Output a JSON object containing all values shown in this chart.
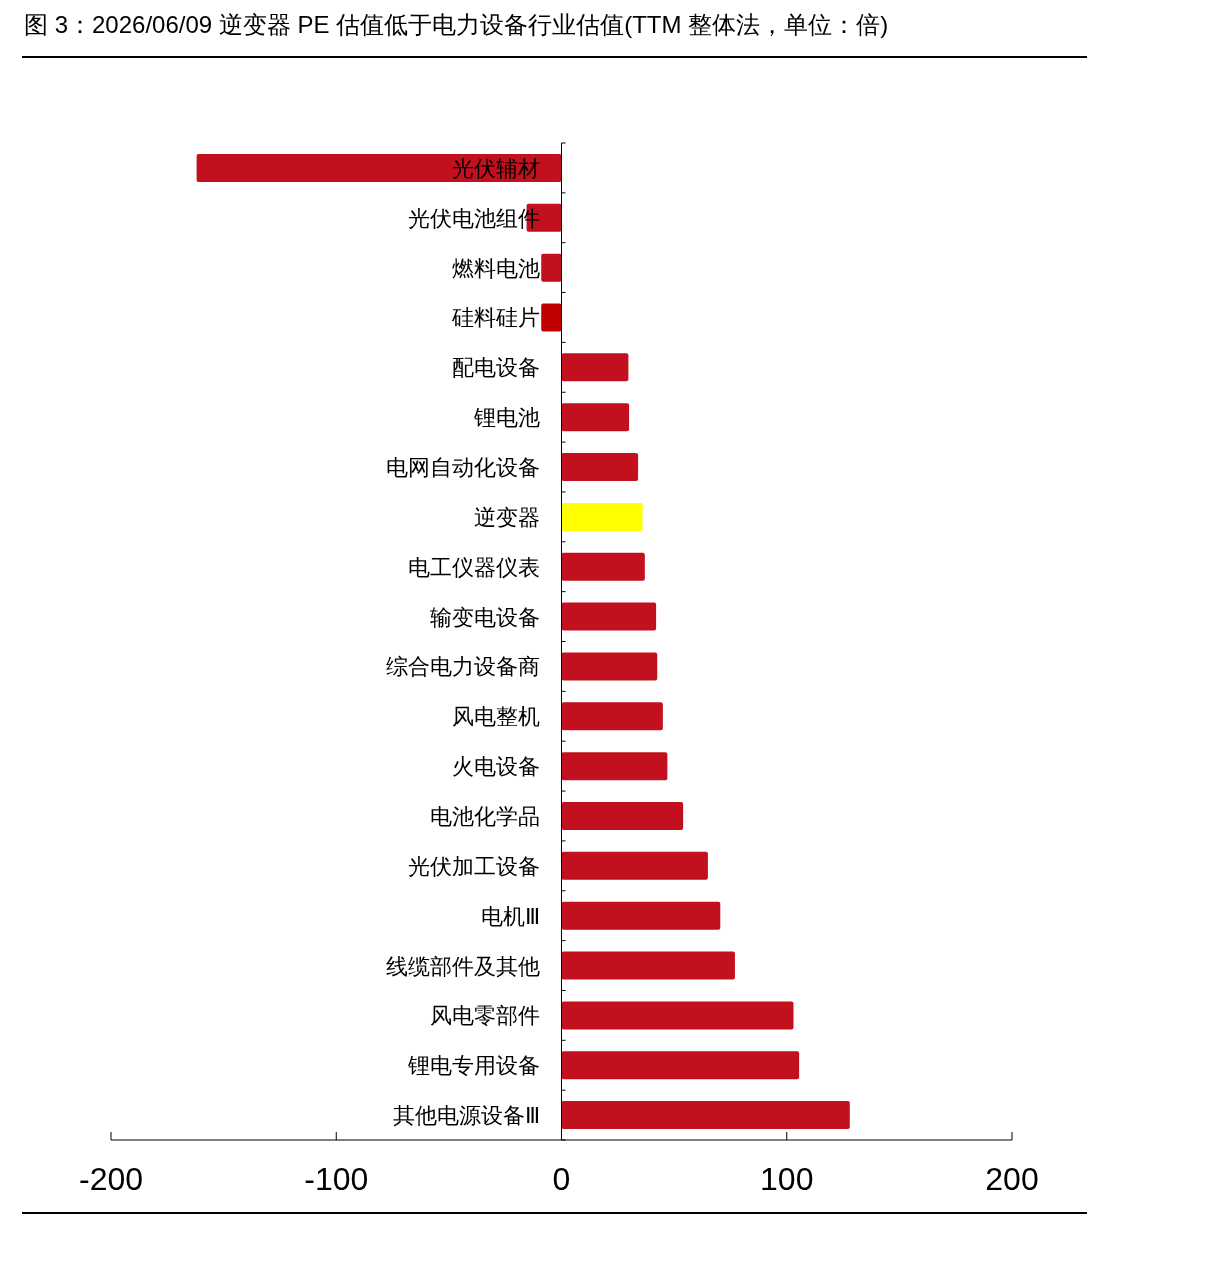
{
  "chart_data": {
    "type": "bar",
    "orientation": "horizontal",
    "title": "图 3：2026/06/09 逆变器 PE 估值低于电力设备行业估值(TTM 整体法，单位：倍)",
    "categories": [
      "光伏辅材",
      "光伏电池组件",
      "燃料电池",
      "硅料硅片",
      "配电设备",
      "锂电池",
      "电网自动化设备",
      "逆变器",
      "电工仪器仪表",
      "输变电设备",
      "综合电力设备商",
      "风电整机",
      "火电设备",
      "电池化学品",
      "光伏加工设备",
      "电机Ⅲ",
      "线缆部件及其他",
      "风电零部件",
      "锂电专用设备",
      "其他电源设备Ⅲ"
    ],
    "values": [
      -162,
      -15.5,
      -9,
      -9,
      29.7,
      30,
      34,
      36,
      37,
      42,
      42.5,
      45,
      47,
      54,
      65,
      70.5,
      77,
      103,
      105.5,
      128
    ],
    "colors": [
      "#c3101e",
      "#c3101e",
      "#c3101e",
      "#c00000",
      "#c3101e",
      "#c3101e",
      "#c3101e",
      "#ffff00",
      "#c3101e",
      "#c3101e",
      "#c3101e",
      "#c3101e",
      "#c3101e",
      "#c3101e",
      "#c3101e",
      "#c3101e",
      "#c3101e",
      "#c3101e",
      "#c3101e",
      "#c3101e"
    ],
    "xlim": [
      -200,
      200
    ],
    "xticks": [
      -200,
      -100,
      0,
      100,
      200
    ]
  }
}
